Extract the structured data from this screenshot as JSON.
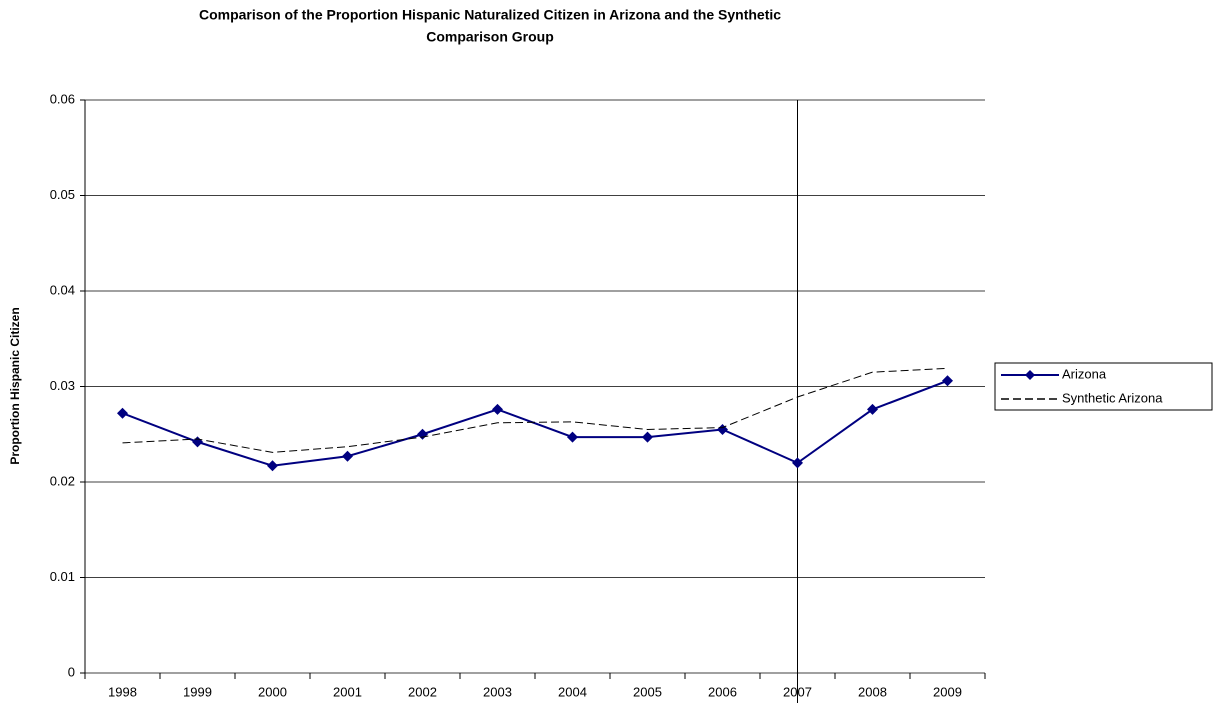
{
  "chart_data": {
    "type": "line",
    "title": [
      "Comparison of the Proportion Hispanic Naturalized Citizen in Arizona and the Synthetic",
      "Comparison Group"
    ],
    "y_label": "Proportion Hispanic Citizen",
    "categories": [
      "1998",
      "1999",
      "2000",
      "2001",
      "2002",
      "2003",
      "2004",
      "2005",
      "2006",
      "2007",
      "2008",
      "2009"
    ],
    "series": [
      {
        "name": "Arizona",
        "color": "#000080",
        "marker": "diamond",
        "linestyle": "solid",
        "values": [
          0.0272,
          0.0242,
          0.0217,
          0.0227,
          0.025,
          0.0276,
          0.0247,
          0.0247,
          0.0255,
          0.022,
          0.0276,
          0.0306
        ]
      },
      {
        "name": "Synthetic Arizona",
        "color": "#000000",
        "marker": "none",
        "linestyle": "dashed",
        "values": [
          0.0241,
          0.0245,
          0.0231,
          0.0237,
          0.0247,
          0.0262,
          0.0263,
          0.0255,
          0.0257,
          0.0289,
          0.0315,
          0.0319
        ]
      }
    ],
    "ylim": [
      0,
      0.06
    ],
    "yticks": [
      0,
      0.01,
      0.02,
      0.03,
      0.04,
      0.05,
      0.06
    ],
    "grid": true,
    "legend": "right",
    "vertical_line_at": "2007"
  }
}
